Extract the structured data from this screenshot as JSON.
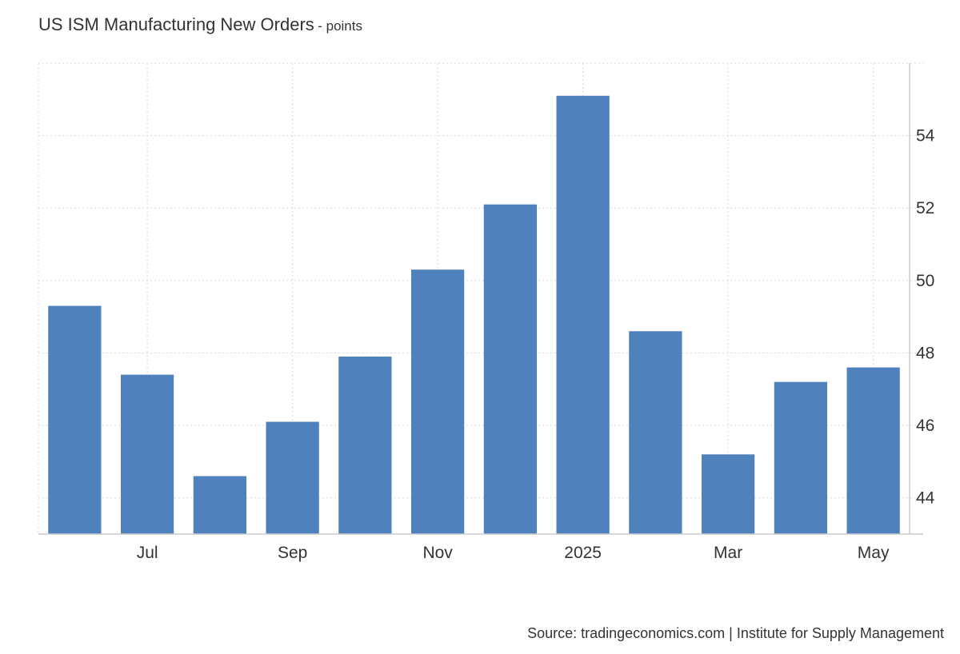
{
  "title": "US ISM Manufacturing New Orders",
  "subtitle": "- points",
  "source": "Source: tradingeconomics.com | Institute for Supply Management",
  "colors": {
    "bar": "#4f81bd",
    "grid": "#d9d9d9",
    "text": "#333333"
  },
  "chart_data": {
    "type": "bar",
    "categories": [
      "Jun 2024",
      "Jul 2024",
      "Aug 2024",
      "Sep 2024",
      "Oct 2024",
      "Nov 2024",
      "Dec 2024",
      "Jan 2025",
      "Feb 2025",
      "Mar 2025",
      "Apr 2025",
      "May 2025"
    ],
    "values": [
      49.3,
      47.4,
      44.6,
      46.1,
      47.9,
      50.3,
      52.1,
      55.1,
      48.6,
      45.2,
      47.2,
      47.6
    ],
    "x_tick_labels": [
      {
        "category": "Jul 2024",
        "label": "Jul"
      },
      {
        "category": "Sep 2024",
        "label": "Sep"
      },
      {
        "category": "Nov 2024",
        "label": "Nov"
      },
      {
        "category": "Jan 2025",
        "label": "2025"
      },
      {
        "category": "Mar 2025",
        "label": "Mar"
      },
      {
        "category": "May 2025",
        "label": "May"
      }
    ],
    "y_ticks": [
      44,
      46,
      48,
      50,
      52,
      54
    ],
    "ylim": [
      43,
      56
    ],
    "grid": true,
    "y_axis_position": "right",
    "legend": "none"
  }
}
